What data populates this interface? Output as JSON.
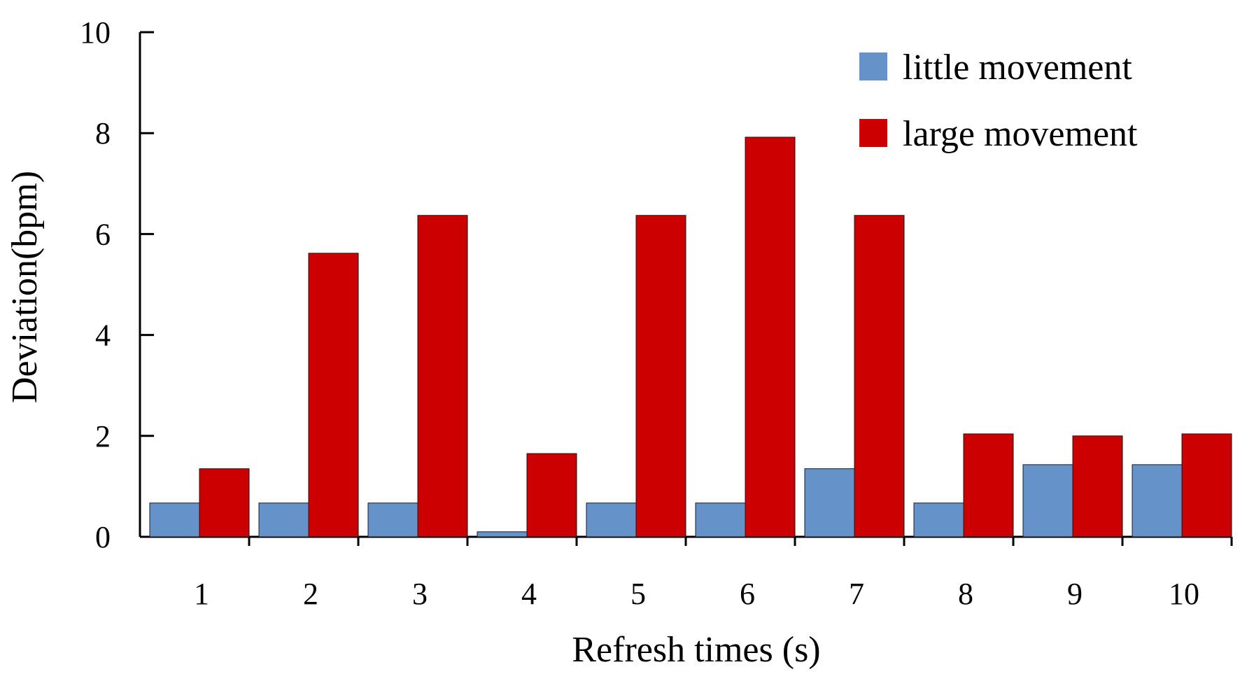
{
  "chart_data": {
    "type": "bar",
    "title": "",
    "xlabel": "Refresh times (s)",
    "ylabel": "Deviation(bpm)",
    "ylim": [
      0,
      10
    ],
    "yticks": [
      0,
      2,
      4,
      6,
      8,
      10
    ],
    "categories": [
      "1",
      "2",
      "3",
      "4",
      "5",
      "6",
      "7",
      "8",
      "9",
      "10"
    ],
    "series": [
      {
        "name": "little movement",
        "color": "#6593c9",
        "values": [
          0.67,
          0.67,
          0.67,
          0.1,
          0.67,
          0.67,
          1.35,
          0.67,
          1.43,
          1.43
        ]
      },
      {
        "name": "large movement",
        "color": "#cc0000",
        "values": [
          1.35,
          5.62,
          6.37,
          1.65,
          6.37,
          7.92,
          6.37,
          2.04,
          2.0,
          2.04
        ]
      }
    ],
    "legend": "top-right",
    "grid": false
  }
}
